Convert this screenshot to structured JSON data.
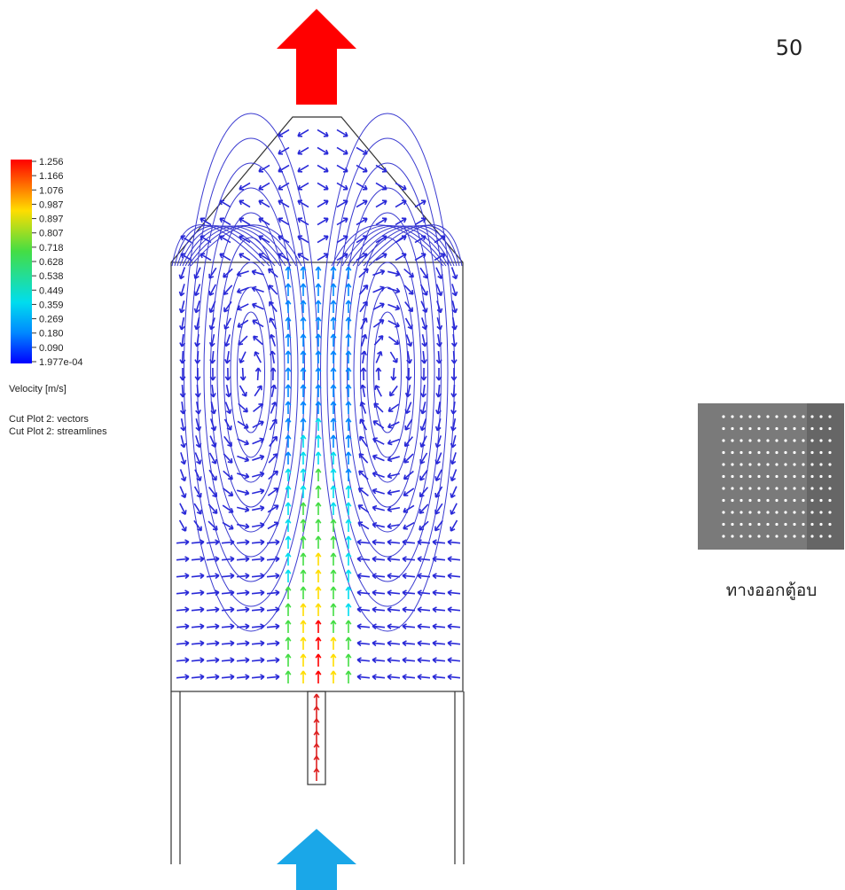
{
  "page_number": "50",
  "legend": {
    "labels": [
      "1.256",
      "1.166",
      "1.076",
      "0.987",
      "0.897",
      "0.807",
      "0.718",
      "0.628",
      "0.538",
      "0.449",
      "0.359",
      "0.269",
      "0.180",
      "0.090",
      "1.977e-04"
    ],
    "quantity": "Velocity [m/s]",
    "notes": [
      "Cut Plot 2: vectors",
      "Cut Plot 2: streamlines"
    ]
  },
  "caption": "ทางออกตู้อบ"
}
